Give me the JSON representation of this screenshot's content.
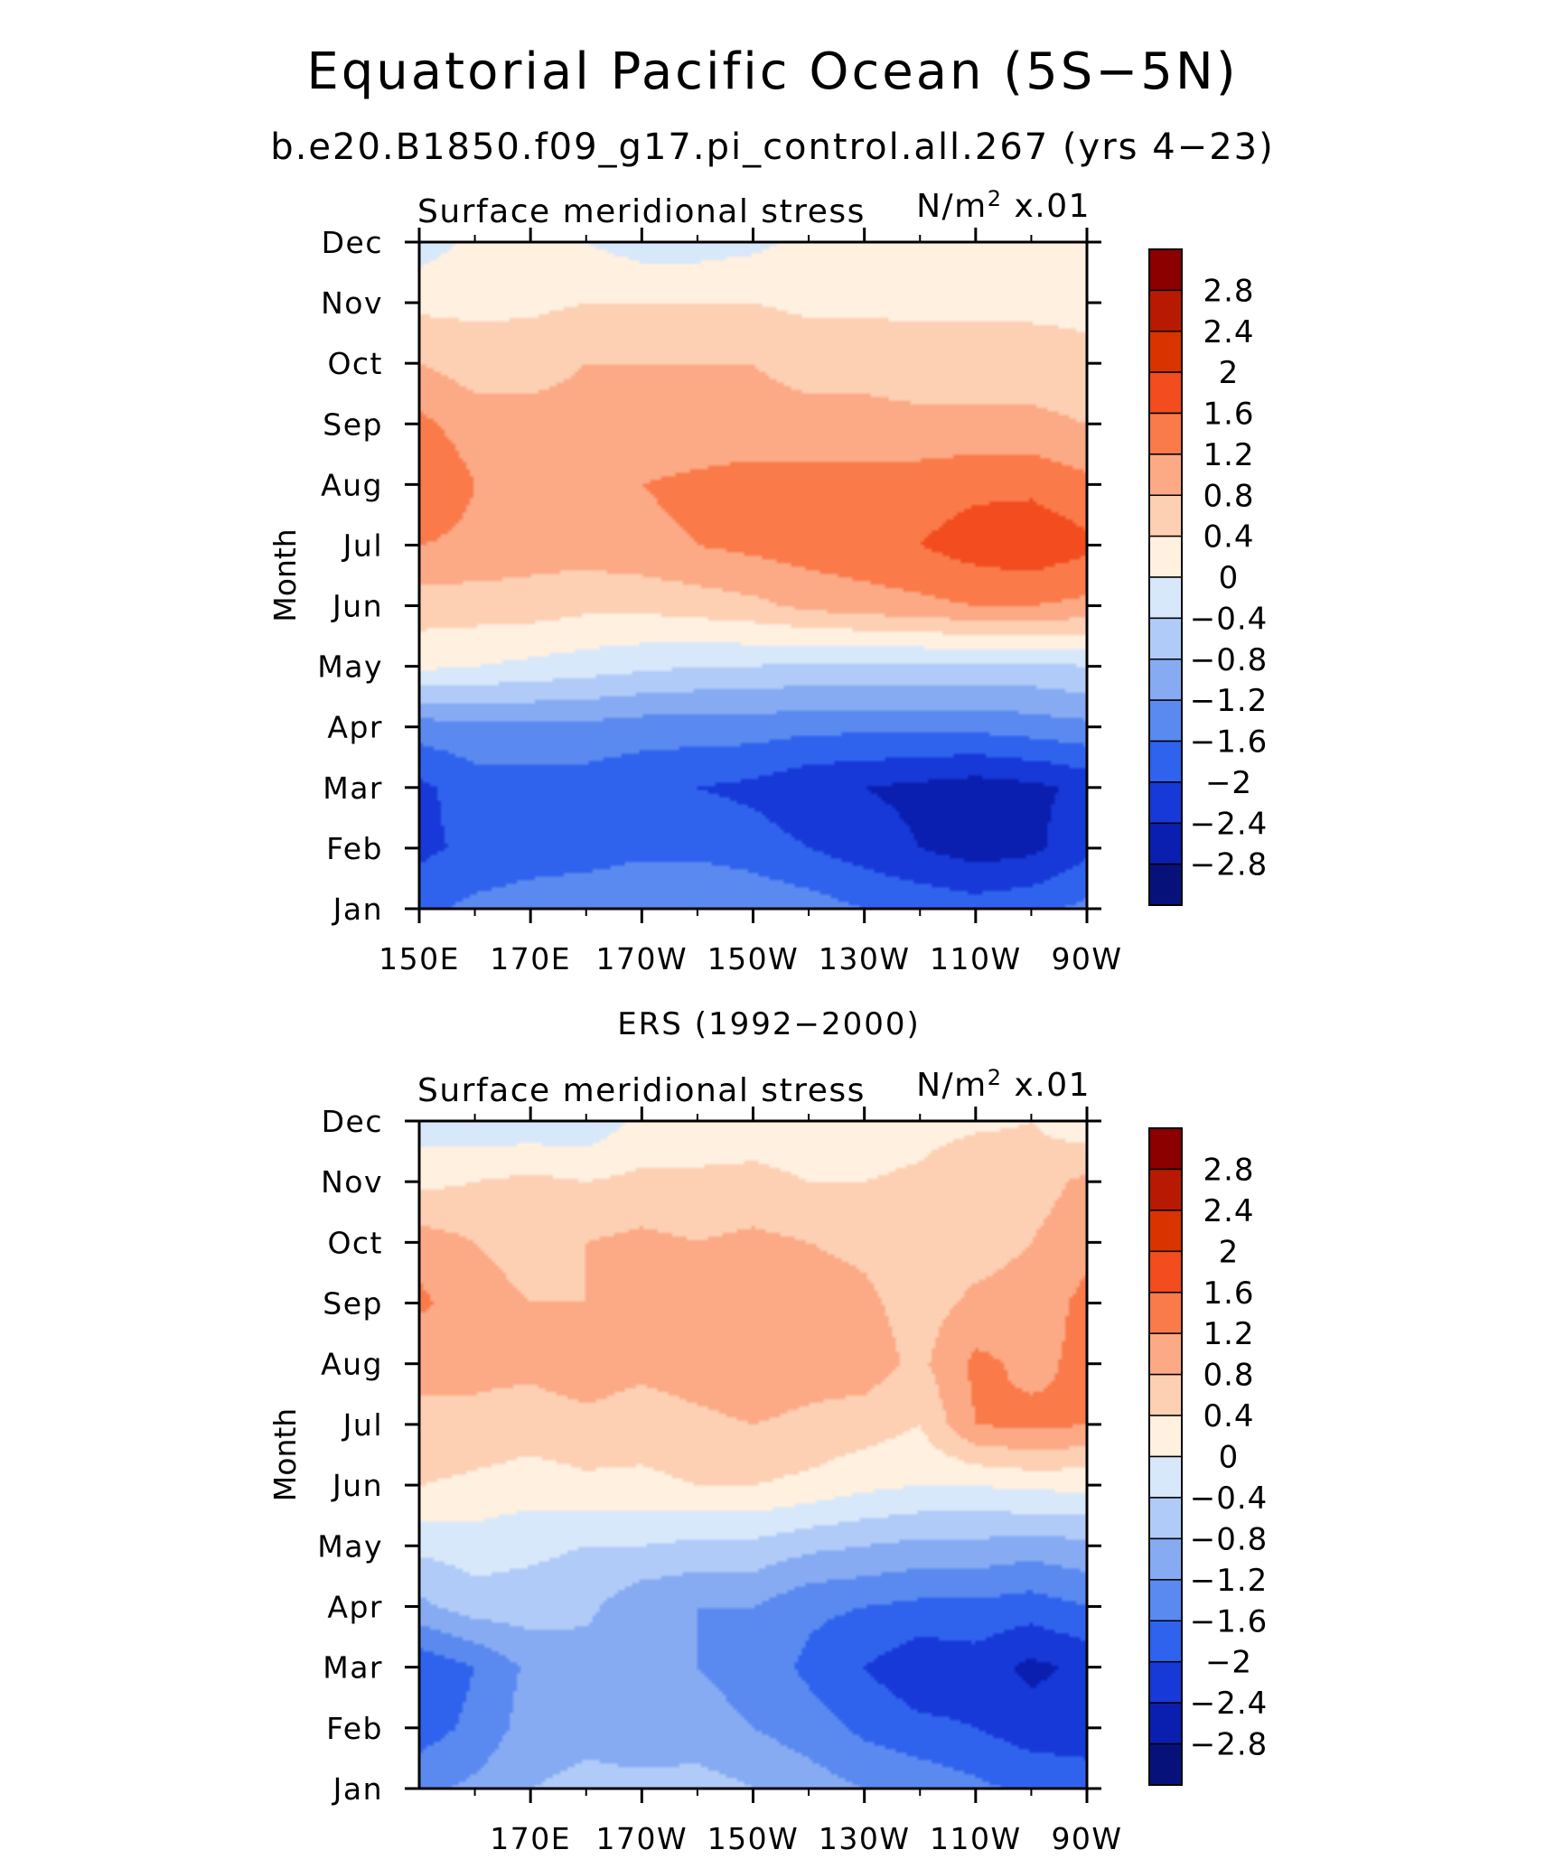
{
  "title": "Equatorial Pacific Ocean (5S−5N)",
  "subtitle": "b.e20.B1850.f09_g17.pi_control.all.267 (yrs 4−23)",
  "colorbar": {
    "levels": [
      2.8,
      2.4,
      2,
      1.6,
      1.2,
      0.8,
      0.4,
      0,
      -0.4,
      -0.8,
      -1.2,
      -1.6,
      -2,
      -2.4,
      -2.8
    ],
    "labels": [
      "2.8",
      "2.4",
      "2",
      "1.6",
      "1.2",
      "0.8",
      "0.4",
      "0",
      "−0.4",
      "−0.8",
      "−1.2",
      "−1.6",
      "−2",
      "−2.4",
      "−2.8"
    ],
    "colors": [
      "#8c0000",
      "#b71a00",
      "#d93300",
      "#f24c1f",
      "#fa7a4a",
      "#fca985",
      "#fdcfb3",
      "#fff0e0",
      "#d8e8fb",
      "#b1cbf8",
      "#86abf3",
      "#5a8af0",
      "#2f63ee",
      "#1739d8",
      "#0a1fb0",
      "#06127a"
    ]
  },
  "chart_data": [
    {
      "type": "heatmap",
      "panel_title": "",
      "left_string": "Surface meridional stress",
      "right_string_main": "N/m",
      "right_string_power": "2",
      "right_string_scale": "x.01",
      "ylabel": "Month",
      "xlabel": "",
      "y": [
        "Jan",
        "Feb",
        "Mar",
        "Apr",
        "May",
        "Jun",
        "Jul",
        "Aug",
        "Sep",
        "Oct",
        "Nov",
        "Dec"
      ],
      "x": [
        150,
        160,
        170,
        180,
        190,
        200,
        210,
        220,
        230,
        240,
        250,
        260,
        270
      ],
      "x_ticks": [
        "150E",
        "170E",
        "170W",
        "150W",
        "130W",
        "110W",
        "90W"
      ],
      "x_tick_values": [
        150,
        170,
        190,
        210,
        230,
        250,
        270
      ],
      "xlim": [
        150,
        270
      ],
      "ylim": [
        1,
        12
      ],
      "colorbar_range": [
        -2.8,
        2.8
      ],
      "values": [
        [
          -1.7,
          -1.5,
          -1.4,
          -1.3,
          -1.2,
          -1.2,
          -1.3,
          -1.4,
          -1.6,
          -1.7,
          -1.8,
          -1.7,
          -1.5
        ],
        [
          -2.1,
          -1.9,
          -1.8,
          -1.8,
          -1.7,
          -1.7,
          -1.8,
          -2.0,
          -2.2,
          -2.4,
          -2.6,
          -2.5,
          -2.1
        ],
        [
          -2.1,
          -1.8,
          -1.8,
          -1.8,
          -1.9,
          -2.0,
          -2.1,
          -2.3,
          -2.4,
          -2.5,
          -2.6,
          -2.5,
          -2.3
        ],
        [
          -1.4,
          -1.3,
          -1.3,
          -1.3,
          -1.4,
          -1.4,
          -1.4,
          -1.5,
          -1.5,
          -1.5,
          -1.5,
          -1.4,
          -1.3
        ],
        [
          0.1,
          0.0,
          -0.1,
          -0.2,
          -0.3,
          -0.4,
          -0.4,
          -0.5,
          -0.5,
          -0.5,
          -0.5,
          -0.5,
          -0.4
        ],
        [
          0.6,
          0.6,
          0.6,
          0.5,
          0.5,
          0.6,
          0.7,
          0.9,
          1.0,
          1.1,
          1.2,
          1.2,
          1.1
        ],
        [
          1.2,
          1.1,
          1.0,
          1.0,
          1.1,
          1.2,
          1.3,
          1.4,
          1.5,
          1.6,
          1.8,
          1.9,
          1.7
        ],
        [
          1.6,
          1.2,
          1.1,
          1.1,
          1.2,
          1.3,
          1.4,
          1.4,
          1.4,
          1.4,
          1.5,
          1.5,
          1.3
        ],
        [
          1.3,
          1.0,
          0.9,
          0.9,
          0.9,
          0.9,
          0.9,
          0.9,
          0.9,
          0.9,
          0.9,
          0.9,
          0.8
        ],
        [
          0.8,
          0.6,
          0.7,
          0.8,
          0.8,
          0.8,
          0.8,
          0.7,
          0.7,
          0.6,
          0.6,
          0.6,
          0.5
        ],
        [
          0.3,
          0.3,
          0.3,
          0.4,
          0.4,
          0.4,
          0.4,
          0.3,
          0.3,
          0.3,
          0.3,
          0.3,
          0.3
        ],
        [
          -0.2,
          0.1,
          0.1,
          0.0,
          -0.2,
          -0.2,
          -0.1,
          0.1,
          0.2,
          0.2,
          0.2,
          0.2,
          0.2
        ]
      ]
    },
    {
      "type": "heatmap",
      "panel_title": "ERS (1992−2000)",
      "left_string": "Surface meridional stress",
      "right_string_main": "N/m",
      "right_string_power": "2",
      "right_string_scale": "x.01",
      "ylabel": "Month",
      "xlabel": "",
      "y": [
        "Jan",
        "Feb",
        "Mar",
        "Apr",
        "May",
        "Jun",
        "Jul",
        "Aug",
        "Sep",
        "Oct",
        "Nov",
        "Dec"
      ],
      "x": [
        150,
        160,
        170,
        180,
        190,
        200,
        210,
        220,
        230,
        240,
        250,
        260,
        270
      ],
      "x_ticks": [
        "170E",
        "170W",
        "150W",
        "130W",
        "110W",
        "90W"
      ],
      "x_tick_values": [
        170,
        190,
        210,
        230,
        250,
        270
      ],
      "xlim": [
        150,
        270
      ],
      "ylim": [
        1,
        12
      ],
      "colorbar_range": [
        -2.8,
        2.8
      ],
      "values": [
        [
          -1.3,
          -1.1,
          -0.8,
          -0.7,
          -0.7,
          -0.6,
          -0.8,
          -1.0,
          -1.2,
          -1.3,
          -1.5,
          -1.7,
          -1.8
        ],
        [
          -1.8,
          -1.5,
          -1.0,
          -0.9,
          -1.0,
          -1.1,
          -1.2,
          -1.4,
          -1.7,
          -1.9,
          -2.0,
          -2.2,
          -2.2
        ],
        [
          -1.9,
          -1.6,
          -1.1,
          -1.0,
          -1.1,
          -1.2,
          -1.3,
          -1.7,
          -2.0,
          -2.3,
          -2.2,
          -2.5,
          -2.3
        ],
        [
          -0.9,
          -0.6,
          -0.6,
          -0.7,
          -1.1,
          -1.2,
          -1.2,
          -1.5,
          -1.6,
          -1.7,
          -1.7,
          -1.8,
          -1.6
        ],
        [
          -0.3,
          -0.2,
          -0.3,
          -0.4,
          -0.4,
          -0.5,
          -0.5,
          -0.7,
          -0.8,
          -0.9,
          -0.9,
          -1.0,
          -0.9
        ],
        [
          0.4,
          0.3,
          0.2,
          0.3,
          0.3,
          0.4,
          0.4,
          0.3,
          0.1,
          0.0,
          0.0,
          0.1,
          0.1
        ],
        [
          0.8,
          0.7,
          0.6,
          0.7,
          0.6,
          0.7,
          0.8,
          0.7,
          0.6,
          0.4,
          1.2,
          1.3,
          1.2
        ],
        [
          0.8,
          0.9,
          0.9,
          1.0,
          0.9,
          1.0,
          1.1,
          1.0,
          1.0,
          0.7,
          1.3,
          1.1,
          1.3
        ],
        [
          1.3,
          0.9,
          0.8,
          0.8,
          0.9,
          1.0,
          1.1,
          1.0,
          0.9,
          0.6,
          0.9,
          1.0,
          1.3
        ],
        [
          1.0,
          0.8,
          0.7,
          0.8,
          0.9,
          0.8,
          0.9,
          0.8,
          0.7,
          0.5,
          0.6,
          0.8,
          1.1
        ],
        [
          0.3,
          0.4,
          0.5,
          0.4,
          0.5,
          0.5,
          0.5,
          0.4,
          0.4,
          0.5,
          0.8,
          0.6,
          0.9
        ],
        [
          -0.2,
          -0.3,
          -0.3,
          -0.3,
          0.1,
          0.1,
          0.2,
          0.2,
          0.1,
          0.2,
          0.3,
          0.4,
          0.1
        ]
      ]
    }
  ]
}
